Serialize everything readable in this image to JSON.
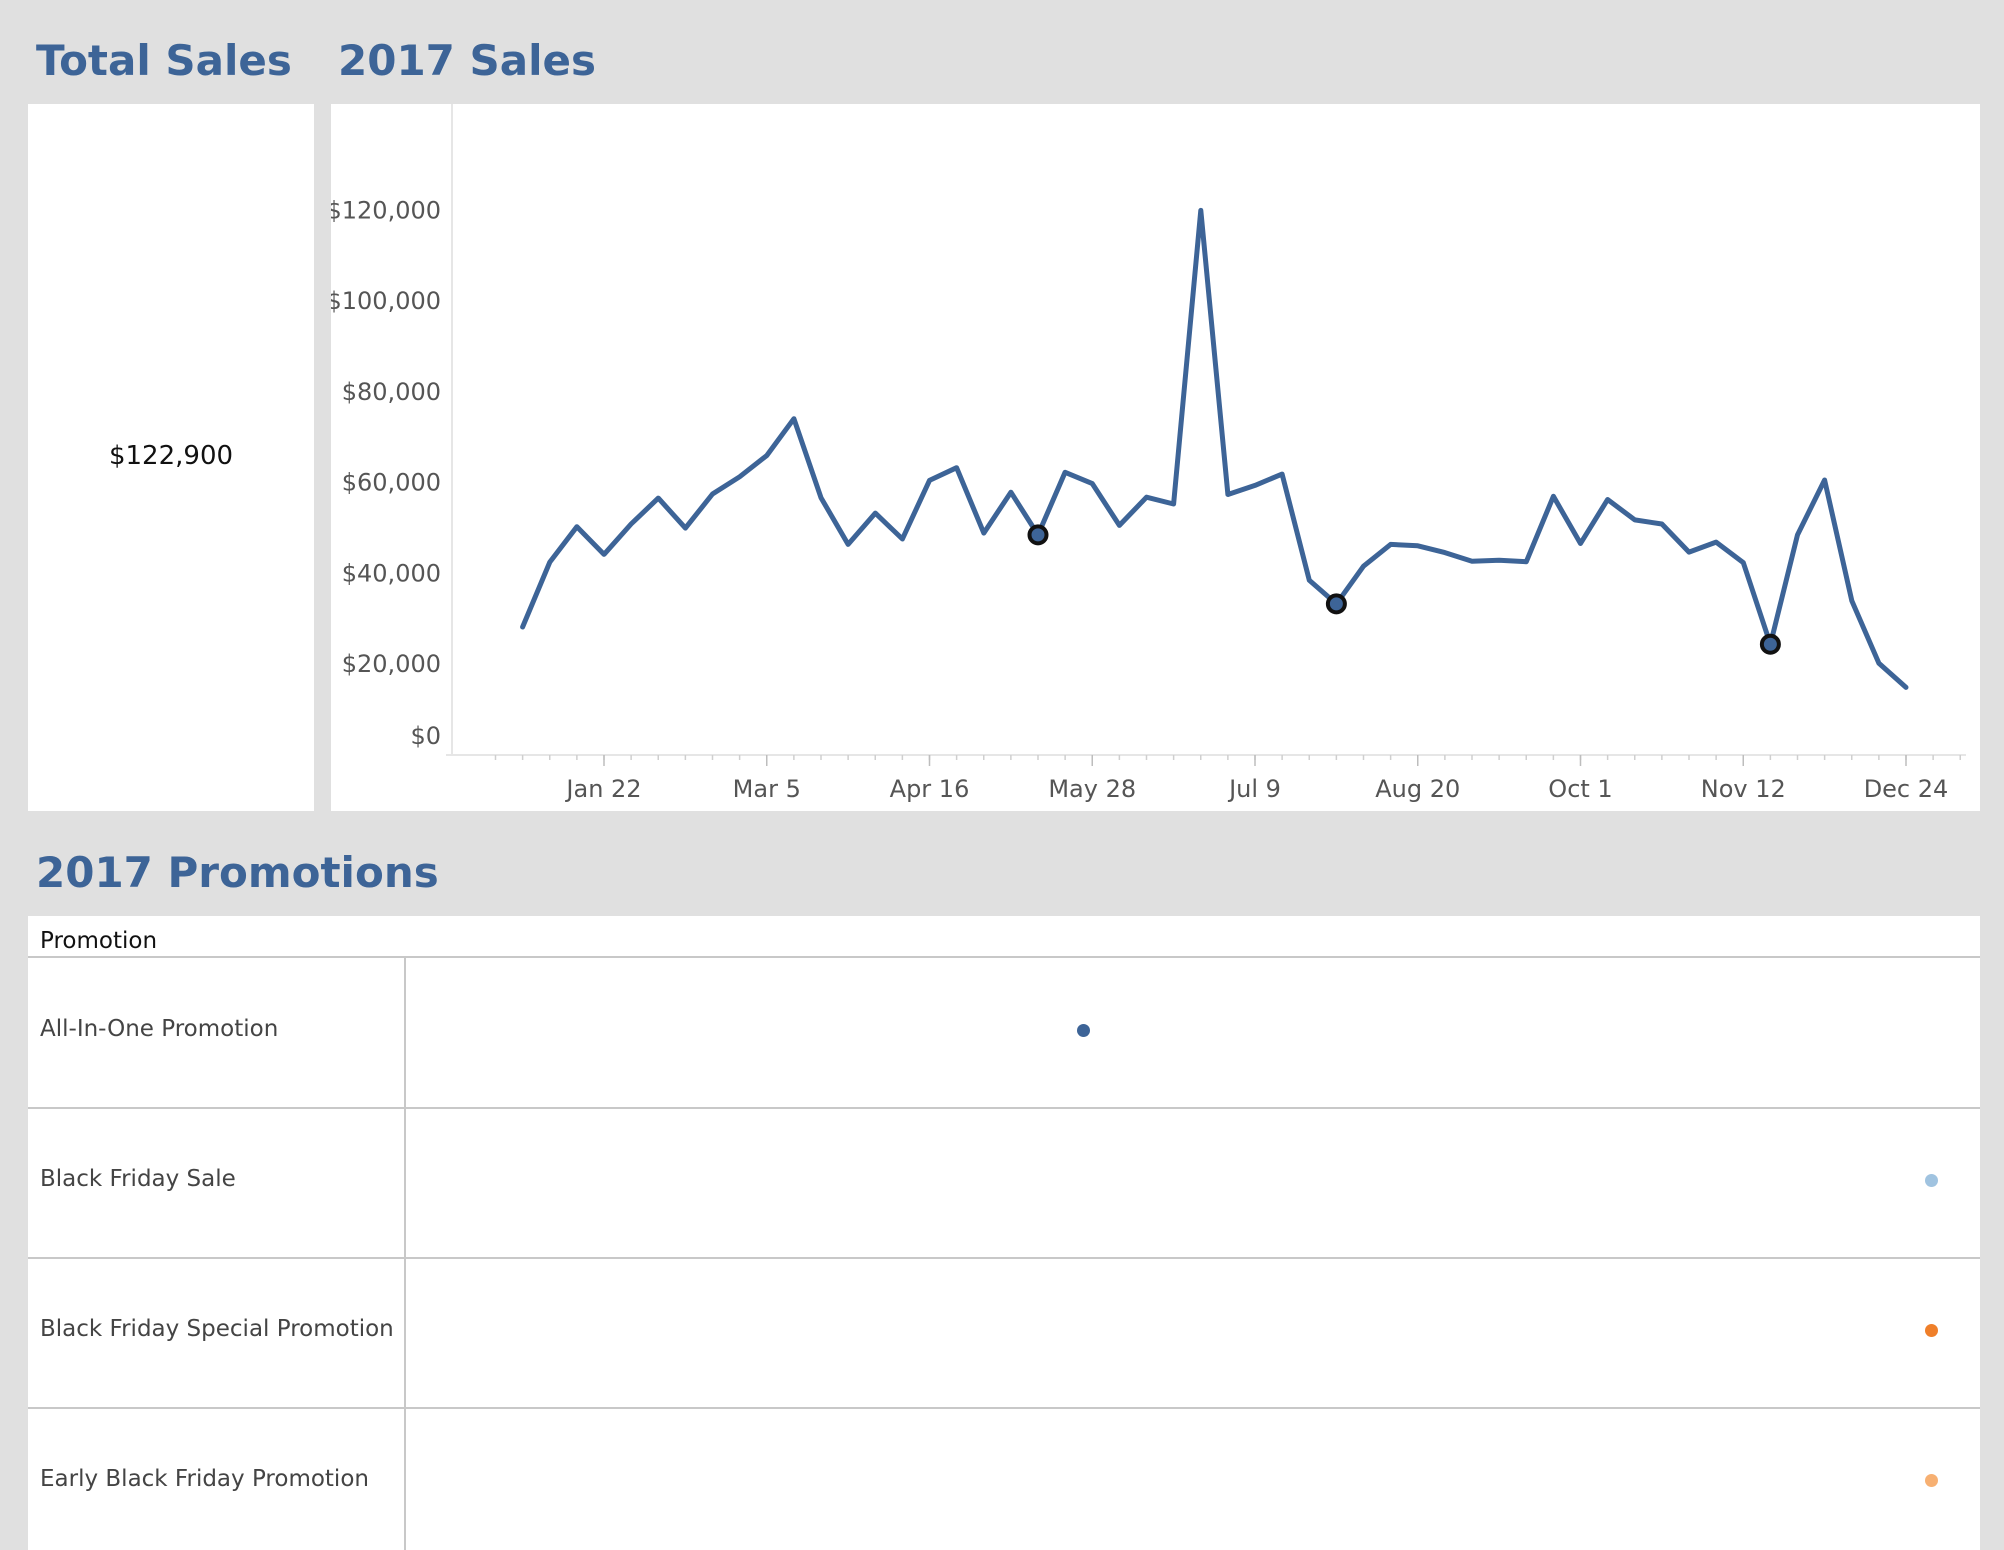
{
  "titles": {
    "total": "Total Sales",
    "sales": "2017 Sales",
    "promotions": "2017 Promotions"
  },
  "total_sales_value": "$122,900",
  "colors": {
    "title": "#3d6497",
    "line": "#3d6497",
    "background": "#e0e0e0",
    "panel": "#ffffff"
  },
  "chart_data": {
    "type": "line",
    "title": "2017 Sales",
    "xlabel": "",
    "ylabel": "",
    "x_type": "date",
    "x": [
      "2017-01-01",
      "2017-01-08",
      "2017-01-15",
      "2017-01-22",
      "2017-01-29",
      "2017-02-05",
      "2017-02-12",
      "2017-02-19",
      "2017-02-26",
      "2017-03-05",
      "2017-03-12",
      "2017-03-19",
      "2017-03-26",
      "2017-04-02",
      "2017-04-09",
      "2017-04-16",
      "2017-04-23",
      "2017-04-30",
      "2017-05-07",
      "2017-05-14",
      "2017-05-21",
      "2017-05-28",
      "2017-06-04",
      "2017-06-11",
      "2017-06-18",
      "2017-06-25",
      "2017-07-02",
      "2017-07-09",
      "2017-07-16",
      "2017-07-23",
      "2017-07-30",
      "2017-08-06",
      "2017-08-13",
      "2017-08-20",
      "2017-08-27",
      "2017-09-03",
      "2017-09-10",
      "2017-09-17",
      "2017-09-24",
      "2017-10-01",
      "2017-10-08",
      "2017-10-15",
      "2017-10-22",
      "2017-10-29",
      "2017-11-05",
      "2017-11-12",
      "2017-11-19",
      "2017-11-26",
      "2017-12-03",
      "2017-12-10",
      "2017-12-17",
      "2017-12-24"
    ],
    "series": [
      {
        "values": [
          28200,
          42500,
          50300,
          44200,
          50900,
          56600,
          50000,
          57500,
          61300,
          66000,
          74100,
          56700,
          46400,
          53300,
          47600,
          60500,
          63300,
          48900,
          57900,
          48500,
          62300,
          59800,
          50600,
          56800,
          55300,
          120000,
          57400,
          59400,
          61900,
          38500,
          33300,
          41600,
          46400,
          46100,
          44600,
          42700,
          42900,
          42600,
          57000,
          46600,
          56300,
          51800,
          50900,
          44700,
          46900,
          42400,
          24400,
          48500,
          60600,
          34000,
          20200,
          14900
        ]
      }
    ],
    "highlighted_points": [
      "2017-05-14",
      "2017-07-30",
      "2017-11-19"
    ],
    "ylim": [
      0,
      130000
    ],
    "y_ticks": [
      0,
      20000,
      40000,
      60000,
      80000,
      100000,
      120000
    ],
    "y_tick_labels": [
      "$0",
      "$20,000",
      "$40,000",
      "$60,000",
      "$80,000",
      "$100,000",
      "$120,000"
    ],
    "x_tick_dates": [
      "2017-01-22",
      "2017-03-05",
      "2017-04-16",
      "2017-05-28",
      "2017-07-09",
      "2017-08-20",
      "2017-10-01",
      "2017-11-12",
      "2017-12-24"
    ],
    "x_tick_labels": [
      "Jan 22",
      "Mar 5",
      "Apr 16",
      "May 28",
      "Jul 9",
      "Aug 20",
      "Oct 1",
      "Nov 12",
      "Dec 24"
    ],
    "grid": false
  },
  "promotions": {
    "header": "Promotion",
    "rows": [
      {
        "label": "All-In-One Promotion",
        "date": "2017-05-14",
        "color": "#3d6497"
      },
      {
        "label": "Black Friday Sale",
        "date": "2017-12-24",
        "color": "#a0c3e0"
      },
      {
        "label": "Black Friday Special Promotion",
        "date": "2017-12-24",
        "color": "#ef7f2a"
      },
      {
        "label": "Early Black Friday Promotion",
        "date": "2017-12-24",
        "color": "#f7b072"
      }
    ]
  }
}
